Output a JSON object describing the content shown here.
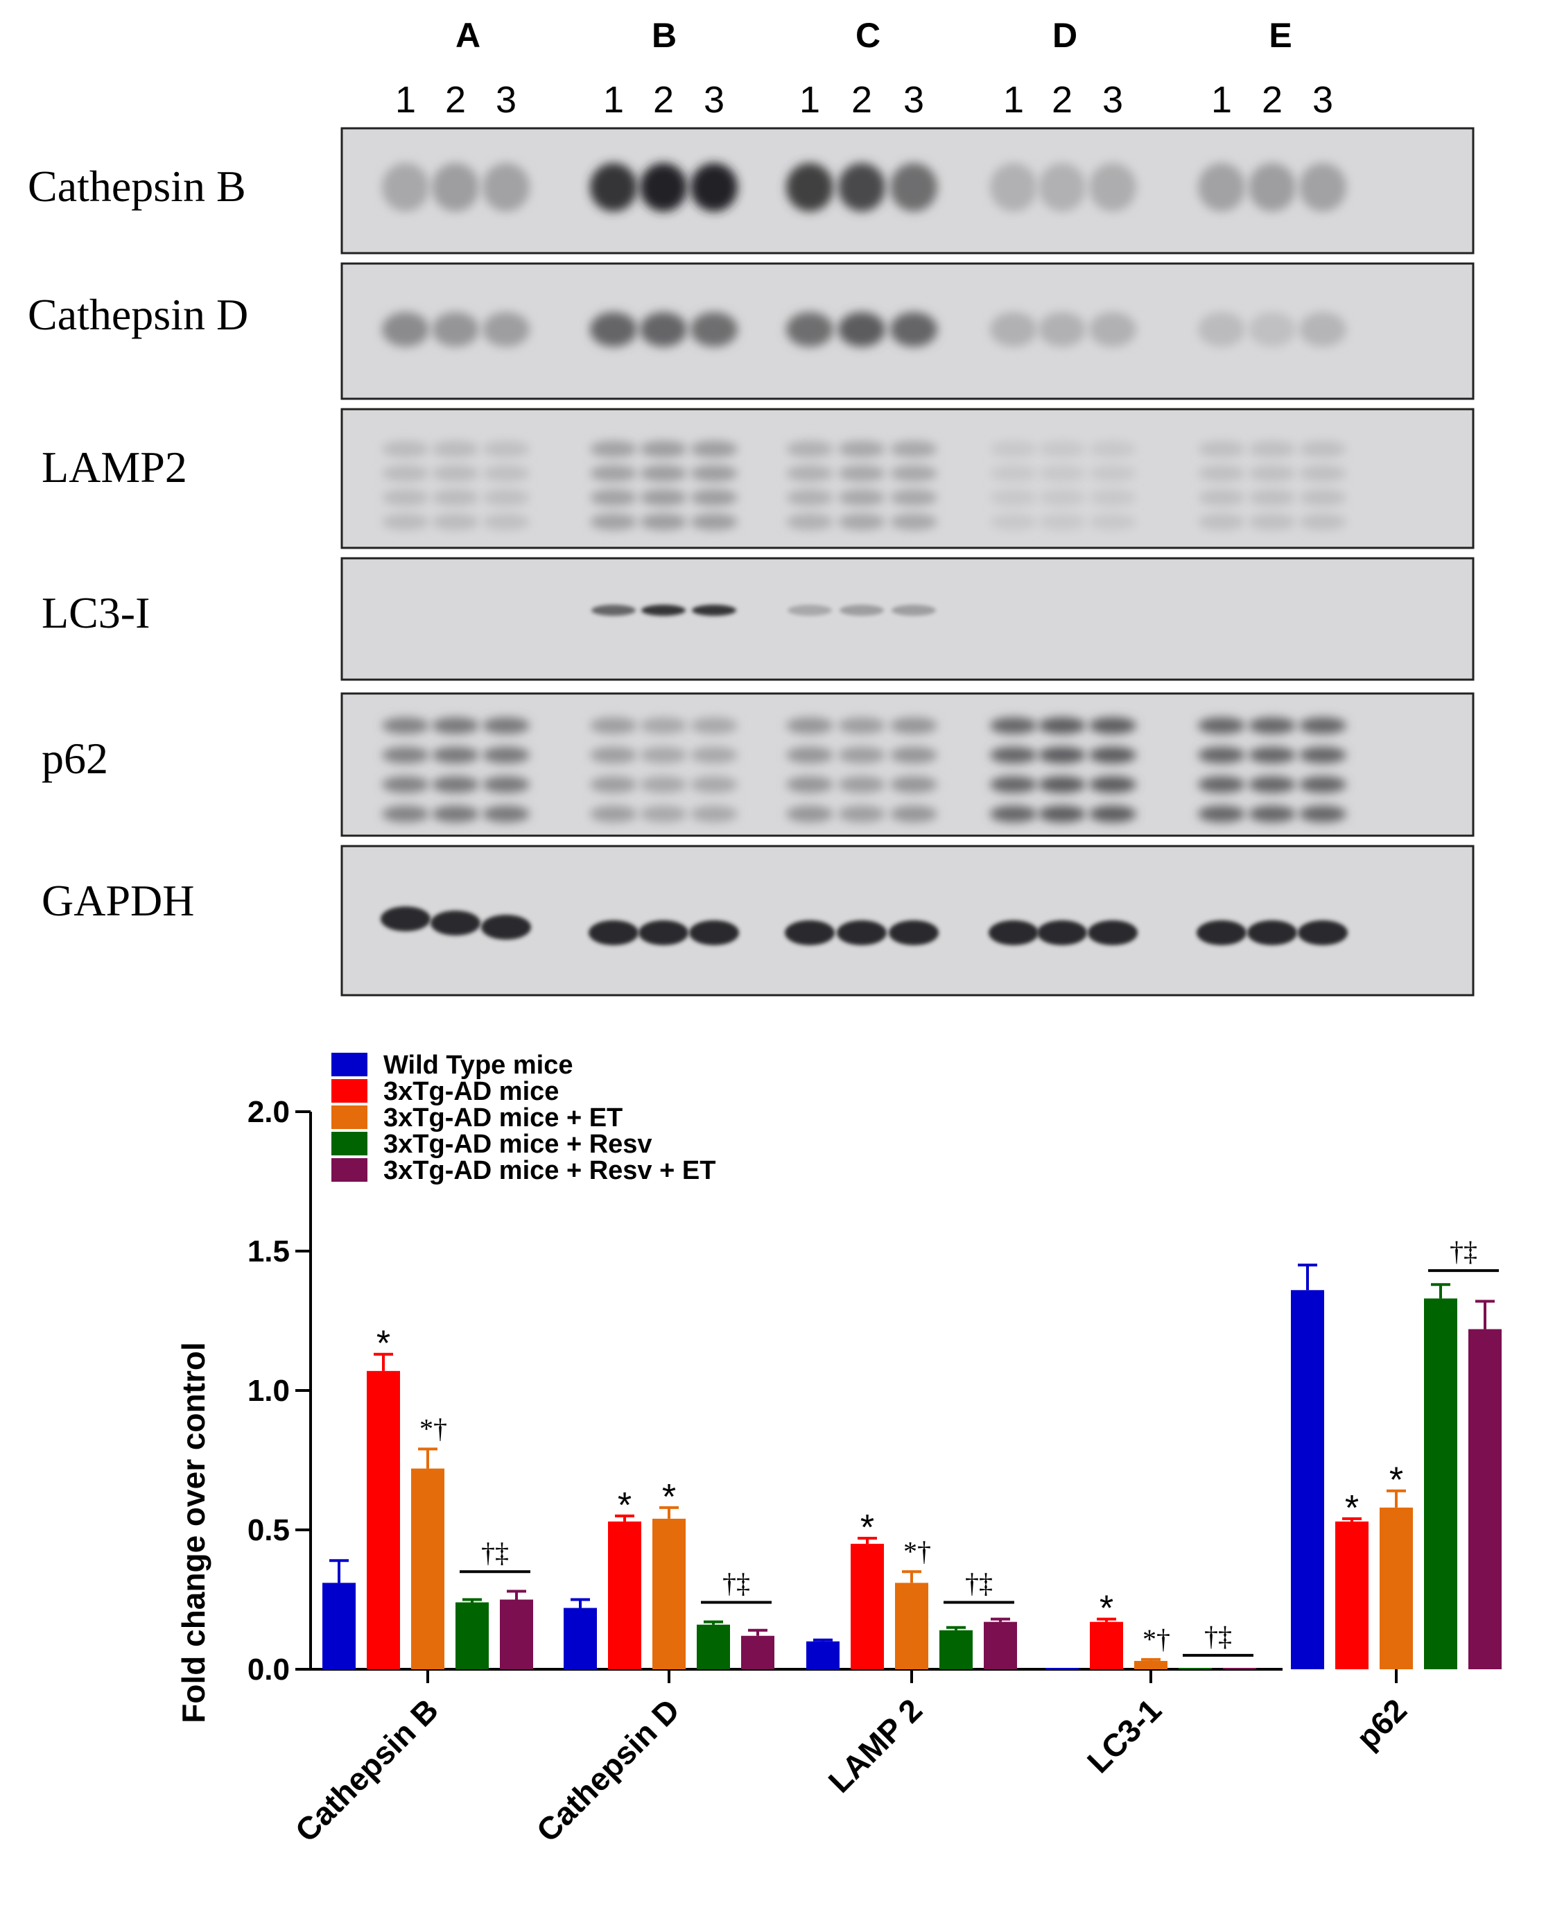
{
  "blot": {
    "groups": [
      "A",
      "B",
      "C",
      "D",
      "E"
    ],
    "lane_labels": [
      "1",
      "2",
      "3"
    ],
    "rows": [
      {
        "label": "Cathepsin B",
        "intensity": [
          0.25,
          0.3,
          0.28,
          0.85,
          0.95,
          0.95,
          0.8,
          0.75,
          0.55,
          0.2,
          0.2,
          0.22,
          0.28,
          0.3,
          0.28
        ]
      },
      {
        "label": "Cathepsin D",
        "intensity": [
          0.4,
          0.35,
          0.3,
          0.6,
          0.6,
          0.55,
          0.55,
          0.65,
          0.6,
          0.2,
          0.2,
          0.2,
          0.15,
          0.12,
          0.18
        ]
      },
      {
        "label": "LAMP2",
        "intensity": [
          0.15,
          0.15,
          0.12,
          0.28,
          0.3,
          0.3,
          0.2,
          0.25,
          0.25,
          0.08,
          0.08,
          0.08,
          0.12,
          0.12,
          0.12
        ]
      },
      {
        "label": "LC3-I",
        "intensity": [
          0,
          0,
          0,
          0.6,
          0.85,
          0.85,
          0.25,
          0.3,
          0.3,
          0,
          0,
          0,
          0,
          0,
          0
        ]
      },
      {
        "label": "p62",
        "intensity": [
          0.45,
          0.5,
          0.5,
          0.3,
          0.25,
          0.25,
          0.35,
          0.3,
          0.35,
          0.6,
          0.65,
          0.65,
          0.6,
          0.6,
          0.6
        ]
      },
      {
        "label": "GAPDH",
        "intensity": [
          0.9,
          0.9,
          0.9,
          0.9,
          0.9,
          0.9,
          0.9,
          0.9,
          0.9,
          0.9,
          0.9,
          0.9,
          0.9,
          0.9,
          0.9
        ]
      }
    ]
  },
  "chart_data": {
    "type": "bar",
    "categories": [
      "Cathepsin B",
      "Cathepsin D",
      "LAMP 2",
      "LC3-1",
      "p62"
    ],
    "ylabel": "Fold change over control",
    "ylim": [
      0,
      2.0
    ],
    "yticks": [
      "0.0",
      "0.5",
      "1.0",
      "1.5",
      "2.0"
    ],
    "series": [
      {
        "name": "Wild Type mice",
        "color": "#0000cc",
        "values": [
          0.31,
          0.22,
          0.1,
          0.005,
          1.36
        ],
        "errors": [
          0.08,
          0.03,
          0.005,
          0.0,
          0.09
        ]
      },
      {
        "name": "3xTg-AD mice",
        "color": "#ff0000",
        "values": [
          1.07,
          0.53,
          0.45,
          0.17,
          0.53
        ],
        "errors": [
          0.06,
          0.02,
          0.02,
          0.01,
          0.01
        ]
      },
      {
        "name": "3xTg-AD mice + ET",
        "color": "#e56c0a",
        "values": [
          0.72,
          0.54,
          0.31,
          0.03,
          0.58
        ],
        "errors": [
          0.07,
          0.04,
          0.04,
          0.005,
          0.06
        ]
      },
      {
        "name": "3xTg-AD mice + Resv",
        "color": "#006400",
        "values": [
          0.24,
          0.16,
          0.14,
          0.005,
          1.33
        ],
        "errors": [
          0.01,
          0.01,
          0.01,
          0.0,
          0.05
        ]
      },
      {
        "name": "3xTg-AD mice + Resv + ET",
        "color": "#7b0f50",
        "values": [
          0.25,
          0.12,
          0.17,
          0.005,
          1.22
        ],
        "errors": [
          0.03,
          0.02,
          0.01,
          0.0,
          0.1
        ]
      }
    ],
    "annotations": [
      {
        "category": 0,
        "series": 1,
        "text": "*"
      },
      {
        "category": 0,
        "series": 2,
        "text": "*†"
      },
      {
        "category": 0,
        "series": 3.5,
        "text": "†‡",
        "bar": true,
        "y": 0.35
      },
      {
        "category": 1,
        "series": 1,
        "text": "*"
      },
      {
        "category": 1,
        "series": 2,
        "text": "*"
      },
      {
        "category": 1,
        "series": 3.5,
        "text": "†‡",
        "bar": true,
        "y": 0.24
      },
      {
        "category": 2,
        "series": 1,
        "text": "*"
      },
      {
        "category": 2,
        "series": 2,
        "text": "*†"
      },
      {
        "category": 2,
        "series": 3.5,
        "text": "†‡",
        "bar": true,
        "y": 0.24
      },
      {
        "category": 3,
        "series": 1,
        "text": "*"
      },
      {
        "category": 3,
        "series": 2,
        "text": "*†"
      },
      {
        "category": 3,
        "series": 3.5,
        "text": "†‡",
        "bar": true,
        "y": 0.05
      },
      {
        "category": 4,
        "series": 1,
        "text": "*"
      },
      {
        "category": 4,
        "series": 2,
        "text": "*"
      },
      {
        "category": 4,
        "series": 3.5,
        "text": "†‡",
        "bar": true,
        "y": 1.43
      }
    ],
    "legend_position": "top-left"
  }
}
